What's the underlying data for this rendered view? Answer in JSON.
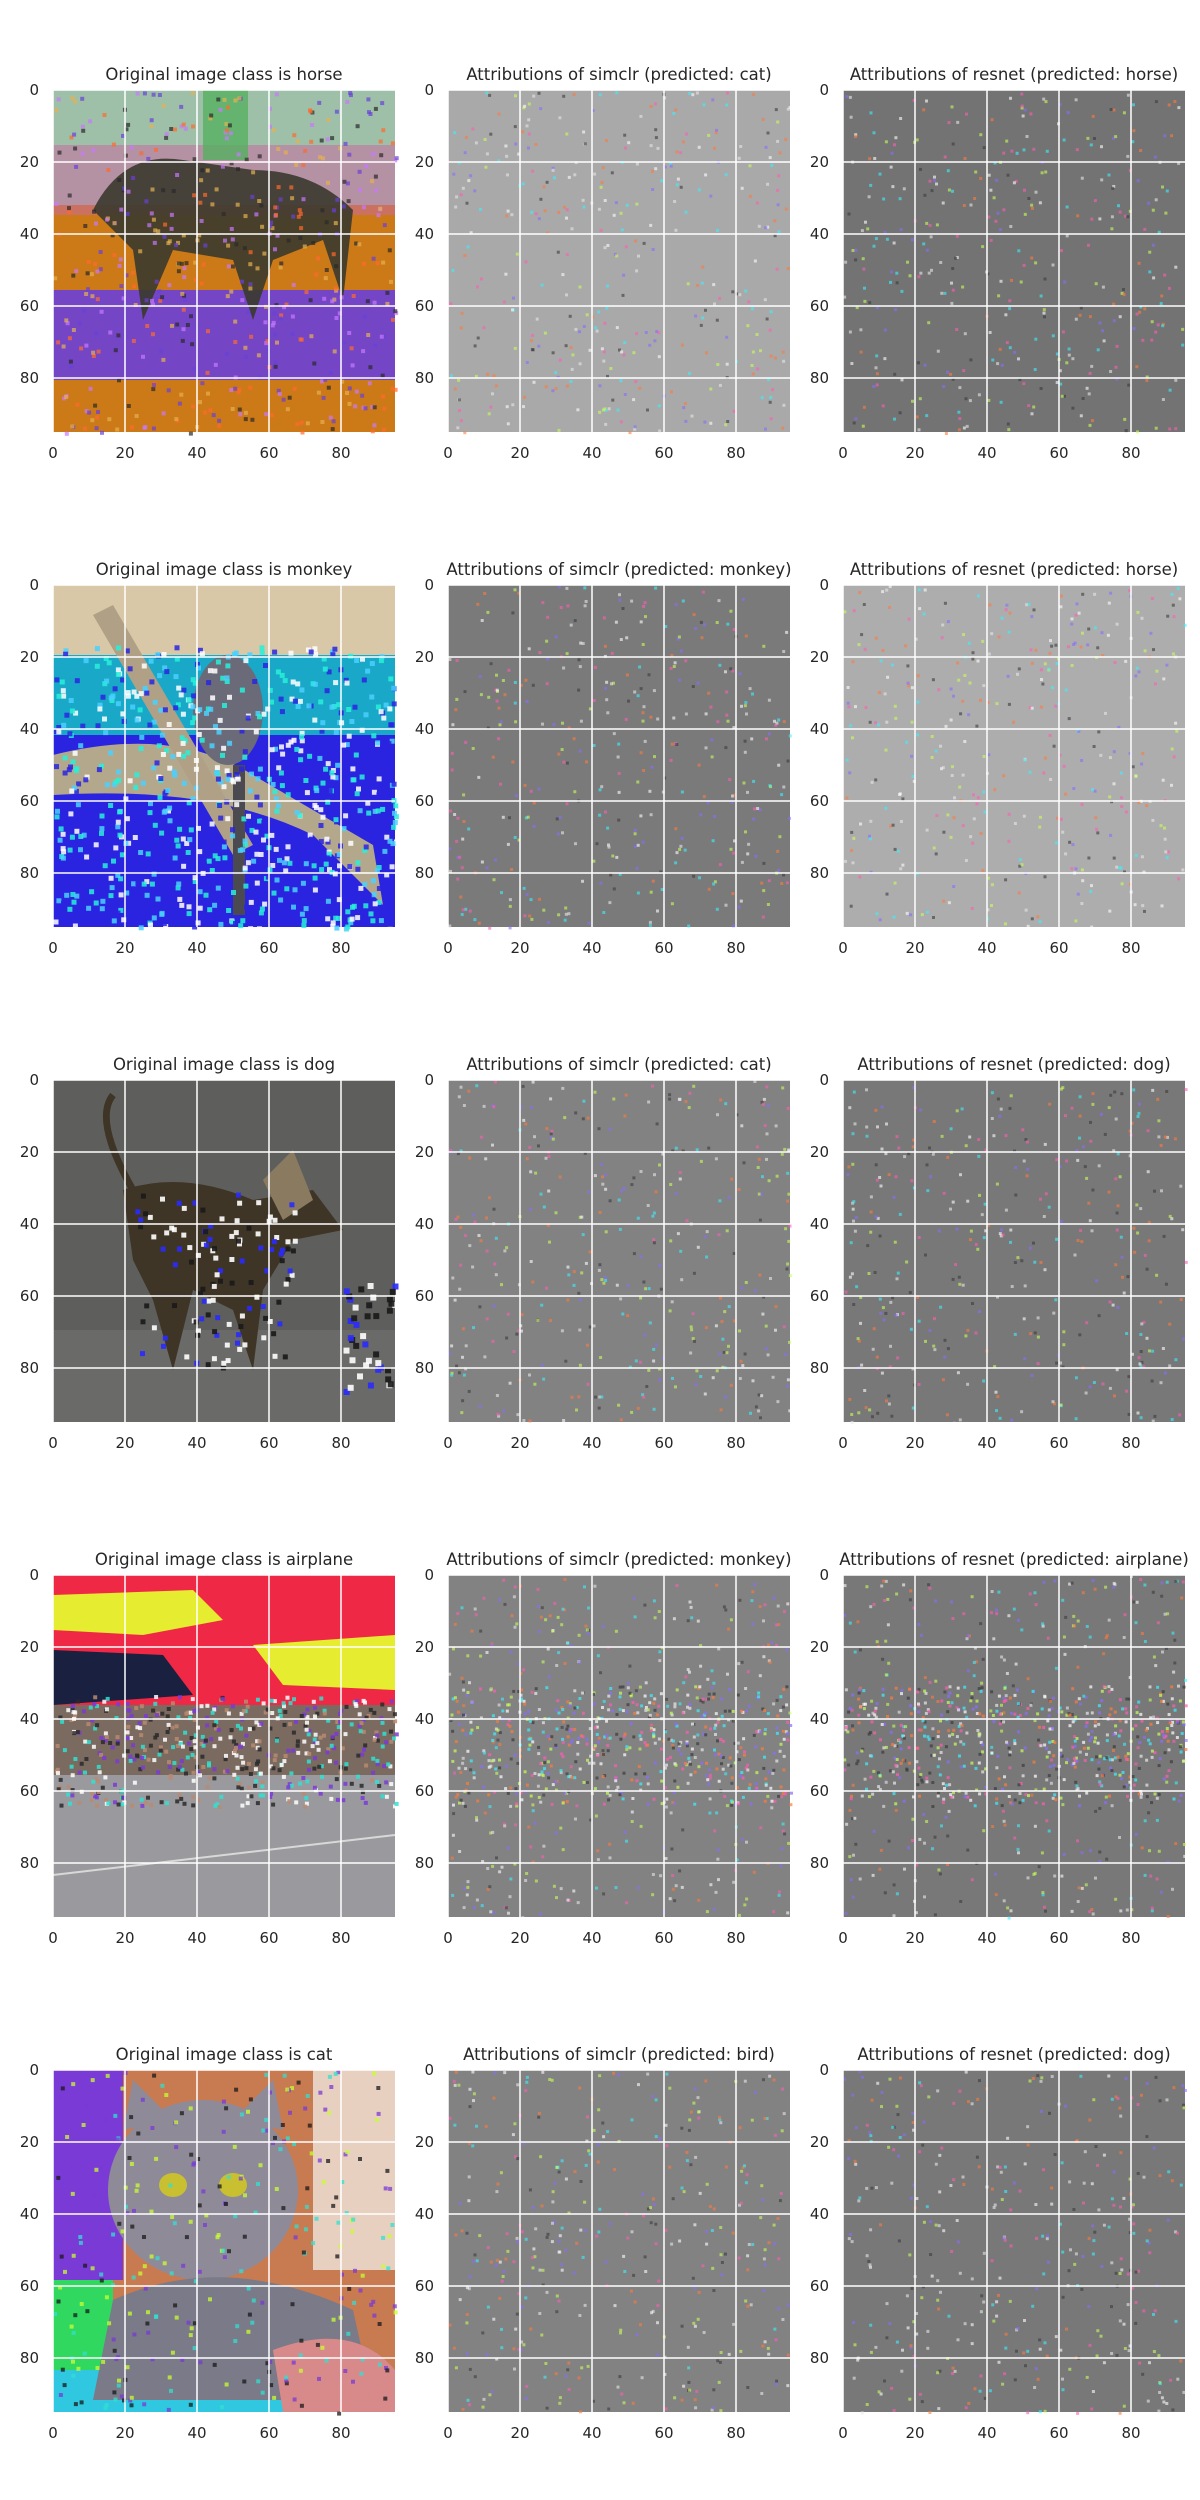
{
  "chart_data": {
    "type": "image-grid",
    "x_ticks": [
      0,
      20,
      40,
      60,
      80
    ],
    "y_ticks": [
      0,
      20,
      40,
      60,
      80
    ],
    "xlim": [
      0,
      95
    ],
    "ylim": [
      95,
      0
    ],
    "grid": true,
    "colors": {
      "grid": "#ffffff",
      "text": "#262626",
      "simclr_bg_light": "#a9a9a9",
      "simclr_bg_dark": "#7a7a7a",
      "resnet_bg_dark": "#737373",
      "resnet_bg_light": "#adadad",
      "horse_sky": "#9ec0a8",
      "horse_ground": "#cc7a18",
      "horse_purple": "#6a40d8",
      "monkey_bg": "#1aa8c8",
      "monkey_blue": "#2a24e0",
      "monkey_cyan": "#28f0d8",
      "dog_bg": "#5e5f5c",
      "airplane_sky": "#ee2845",
      "airplane_yellow": "#e6ec30",
      "airplane_ground": "#9a9a9e",
      "cat_fur": "#8f8a98",
      "cat_purple": "#7a3ad6",
      "cat_green": "#30d860"
    },
    "rows": [
      {
        "original_title": "Original image class is horse",
        "simclr_title": "Attributions of simclr (predicted: cat)",
        "resnet_title": "Attributions of resnet (predicted: horse)"
      },
      {
        "original_title": "Original image class is monkey",
        "simclr_title": "Attributions of simclr (predicted: monkey)",
        "resnet_title": "Attributions of resnet (predicted: horse)"
      },
      {
        "original_title": "Original image class is dog",
        "simclr_title": "Attributions of simclr (predicted: cat)",
        "resnet_title": "Attributions of resnet (predicted: dog)"
      },
      {
        "original_title": "Original image class is airplane",
        "simclr_title": "Attributions of simclr (predicted: monkey)",
        "resnet_title": "Attributions of resnet (predicted: airplane)"
      },
      {
        "original_title": "Original image class is cat",
        "simclr_title": "Attributions of simclr (predicted: bird)",
        "resnet_title": "Attributions of resnet (predicted: dog)"
      }
    ]
  }
}
